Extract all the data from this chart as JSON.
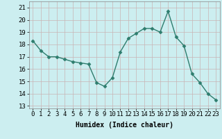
{
  "x": [
    0,
    1,
    2,
    3,
    4,
    5,
    6,
    7,
    8,
    9,
    10,
    11,
    12,
    13,
    14,
    15,
    16,
    17,
    18,
    19,
    20,
    21,
    22,
    23
  ],
  "y": [
    18.3,
    17.5,
    17.0,
    17.0,
    16.8,
    16.6,
    16.5,
    16.4,
    14.9,
    14.6,
    15.3,
    17.4,
    18.5,
    18.9,
    19.3,
    19.3,
    19.0,
    20.7,
    18.6,
    17.9,
    15.6,
    14.9,
    14.0,
    13.5
  ],
  "line_color": "#2e7d6e",
  "marker": "D",
  "marker_size": 2.5,
  "xlabel": "Humidex (Indice chaleur)",
  "xlabel_fontsize": 7,
  "xlabel_weight": "bold",
  "ylabel_ticks": [
    13,
    14,
    15,
    16,
    17,
    18,
    19,
    20,
    21
  ],
  "xtick_labels": [
    "0",
    "1",
    "2",
    "3",
    "4",
    "5",
    "6",
    "7",
    "8",
    "9",
    "10",
    "11",
    "12",
    "13",
    "14",
    "15",
    "16",
    "17",
    "18",
    "19",
    "20",
    "21",
    "22",
    "23"
  ],
  "ylim": [
    12.8,
    21.5
  ],
  "xlim": [
    -0.5,
    23.5
  ],
  "bg_color": "#cceef0",
  "grid_color": "#c8b4b4",
  "tick_fontsize": 6.5
}
